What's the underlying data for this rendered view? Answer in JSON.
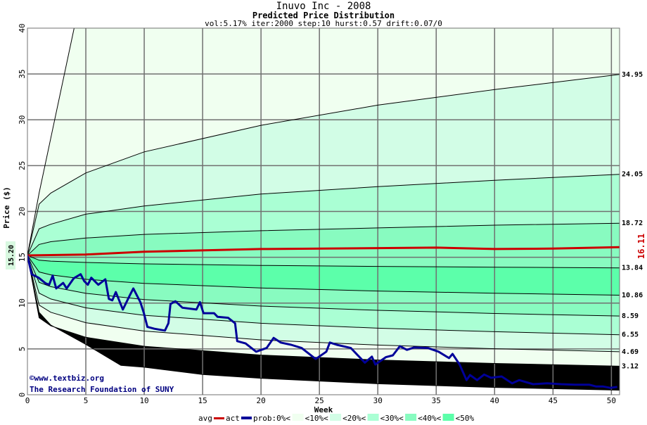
{
  "chart_data": {
    "type": "line",
    "title": "Inuvo Inc - 2008",
    "subtitle": "Predicted Price Distribution",
    "params": "vol:5.17% iter:2000 step:10 hurst:0.57 drift:0.07/0",
    "xlabel": "Week",
    "ylabel": "Price ($)",
    "xlim": [
      0,
      50.7
    ],
    "ylim": [
      0,
      40
    ],
    "xticks": [
      "0",
      "5",
      "10",
      "15",
      "20",
      "25",
      "30",
      "35",
      "40",
      "45",
      "50"
    ],
    "yticks": [
      "0",
      "5",
      "10",
      "15",
      "20",
      "25",
      "30",
      "35",
      "40"
    ],
    "grid": true,
    "start_label": "15.20",
    "avg_end_label": "16.11",
    "percentile_curves": [
      {
        "pct": 100,
        "label": "",
        "points": [
          [
            0,
            15.2
          ],
          [
            1,
            22
          ],
          [
            2,
            28
          ],
          [
            3,
            34
          ],
          [
            4,
            40
          ],
          [
            5,
            48
          ],
          [
            50.7,
            200
          ]
        ]
      },
      {
        "pct": 90,
        "label": "34.95",
        "points": [
          [
            0,
            15.2
          ],
          [
            1,
            20.8
          ],
          [
            2,
            22.0
          ],
          [
            5,
            24.2
          ],
          [
            10,
            26.5
          ],
          [
            20,
            29.4
          ],
          [
            30,
            31.6
          ],
          [
            40,
            33.3
          ],
          [
            50.7,
            34.95
          ]
        ]
      },
      {
        "pct": 80,
        "label": "24.05",
        "points": [
          [
            0,
            15.2
          ],
          [
            1,
            18.1
          ],
          [
            2,
            18.6
          ],
          [
            5,
            19.7
          ],
          [
            10,
            20.6
          ],
          [
            20,
            21.9
          ],
          [
            30,
            22.7
          ],
          [
            40,
            23.4
          ],
          [
            50.7,
            24.05
          ]
        ]
      },
      {
        "pct": 70,
        "label": "18.72",
        "points": [
          [
            0,
            15.2
          ],
          [
            1,
            16.4
          ],
          [
            2,
            16.7
          ],
          [
            5,
            17.1
          ],
          [
            10,
            17.5
          ],
          [
            20,
            17.9
          ],
          [
            30,
            18.2
          ],
          [
            40,
            18.5
          ],
          [
            50.7,
            18.72
          ]
        ]
      },
      {
        "pct": 60,
        "label": "13.84",
        "points": [
          [
            0,
            15.2
          ],
          [
            1,
            14.68
          ],
          [
            2,
            14.58
          ],
          [
            5,
            14.43
          ],
          [
            10,
            14.28
          ],
          [
            20,
            14.11
          ],
          [
            30,
            14.0
          ],
          [
            40,
            13.92
          ],
          [
            50.7,
            13.84
          ]
        ]
      },
      {
        "pct": 50,
        "label": "10.86",
        "points": [
          [
            0,
            15.2
          ],
          [
            1,
            13.4
          ],
          [
            2,
            13.08
          ],
          [
            5,
            12.6
          ],
          [
            10,
            12.15
          ],
          [
            20,
            11.65
          ],
          [
            30,
            11.32
          ],
          [
            40,
            11.08
          ],
          [
            50.7,
            10.86
          ]
        ]
      },
      {
        "pct": 40,
        "label": "8.59",
        "points": [
          [
            0,
            15.2
          ],
          [
            1,
            12.27
          ],
          [
            2,
            11.79
          ],
          [
            5,
            11.06
          ],
          [
            10,
            10.39
          ],
          [
            20,
            9.67
          ],
          [
            30,
            9.21
          ],
          [
            40,
            8.87
          ],
          [
            50.7,
            8.59
          ]
        ]
      },
      {
        "pct": 30,
        "label": "6.55",
        "points": [
          [
            0,
            15.2
          ],
          [
            1,
            11.09
          ],
          [
            2,
            10.45
          ],
          [
            5,
            9.48
          ],
          [
            10,
            8.67
          ],
          [
            20,
            7.8
          ],
          [
            30,
            7.26
          ],
          [
            40,
            6.88
          ],
          [
            50.7,
            6.55
          ]
        ]
      },
      {
        "pct": 20,
        "label": "4.69",
        "points": [
          [
            0,
            15.2
          ],
          [
            1,
            9.78
          ],
          [
            2,
            9.0
          ],
          [
            5,
            7.86
          ],
          [
            10,
            6.95
          ],
          [
            20,
            5.99
          ],
          [
            30,
            5.42
          ],
          [
            40,
            5.02
          ],
          [
            50.7,
            4.69
          ]
        ]
      },
      {
        "pct": 10,
        "label": "3.12",
        "points": [
          [
            0,
            15.2
          ],
          [
            1,
            8.4
          ],
          [
            2,
            7.52
          ],
          [
            5,
            6.27
          ],
          [
            10,
            5.29
          ],
          [
            20,
            4.33
          ],
          [
            30,
            3.79
          ],
          [
            40,
            3.42
          ],
          [
            50.7,
            3.12
          ]
        ]
      },
      {
        "pct": 0,
        "label": "",
        "points": [
          [
            0,
            15.2
          ],
          [
            1,
            9.0
          ],
          [
            2,
            7.6
          ],
          [
            5,
            5.5
          ],
          [
            8,
            3.2
          ],
          [
            10,
            3.0
          ],
          [
            15,
            2.2
          ],
          [
            20,
            1.8
          ],
          [
            30,
            1.2
          ],
          [
            40,
            0.8
          ],
          [
            50.7,
            0.5
          ]
        ]
      }
    ],
    "band_colors": [
      "#f0fff0",
      "#d2fde6",
      "#aaffd4",
      "#88fbc0",
      "#5cffaa",
      "#88fbc0",
      "#aaffd4",
      "#d2fde6",
      "#f0fff0"
    ],
    "series": [
      {
        "name": "avg",
        "color": "#cc0000",
        "points": [
          [
            0,
            15.2
          ],
          [
            5,
            15.3
          ],
          [
            10,
            15.6
          ],
          [
            20,
            15.9
          ],
          [
            30,
            16.0
          ],
          [
            35,
            16.05
          ],
          [
            40,
            15.9
          ],
          [
            45,
            15.95
          ],
          [
            50.7,
            16.11
          ]
        ]
      },
      {
        "name": "act",
        "color": "#000099",
        "points": [
          [
            0,
            15.2
          ],
          [
            0.36,
            13.15
          ],
          [
            0.96,
            12.77
          ],
          [
            1.56,
            12.15
          ],
          [
            1.86,
            12.0
          ],
          [
            2.16,
            13.0
          ],
          [
            2.46,
            11.6
          ],
          [
            3.06,
            12.2
          ],
          [
            3.36,
            11.6
          ],
          [
            3.96,
            12.7
          ],
          [
            4.56,
            13.15
          ],
          [
            4.86,
            12.4
          ],
          [
            5.17,
            12.0
          ],
          [
            5.47,
            12.77
          ],
          [
            6.07,
            12.0
          ],
          [
            6.67,
            12.6
          ],
          [
            6.97,
            10.46
          ],
          [
            7.27,
            10.3
          ],
          [
            7.57,
            11.2
          ],
          [
            8.17,
            9.3
          ],
          [
            8.77,
            10.85
          ],
          [
            9.07,
            11.6
          ],
          [
            9.67,
            10.1
          ],
          [
            9.97,
            8.9
          ],
          [
            10.27,
            7.4
          ],
          [
            10.87,
            7.2
          ],
          [
            11.77,
            7.0
          ],
          [
            12.07,
            7.8
          ],
          [
            12.25,
            9.9
          ],
          [
            12.67,
            10.2
          ],
          [
            13.27,
            9.5
          ],
          [
            14.47,
            9.3
          ],
          [
            14.77,
            10.1
          ],
          [
            15.08,
            8.9
          ],
          [
            15.98,
            8.9
          ],
          [
            16.28,
            8.5
          ],
          [
            17.18,
            8.4
          ],
          [
            17.78,
            7.8
          ],
          [
            17.96,
            5.85
          ],
          [
            18.68,
            5.6
          ],
          [
            19.58,
            4.7
          ],
          [
            20.48,
            5.1
          ],
          [
            21.08,
            6.2
          ],
          [
            21.68,
            5.7
          ],
          [
            22.58,
            5.45
          ],
          [
            23.48,
            5.1
          ],
          [
            24.68,
            3.9
          ],
          [
            25.59,
            4.7
          ],
          [
            25.89,
            5.7
          ],
          [
            26.49,
            5.45
          ],
          [
            27.69,
            5.1
          ],
          [
            28.89,
            3.5
          ],
          [
            29.49,
            4.15
          ],
          [
            29.79,
            3.3
          ],
          [
            30.69,
            4.1
          ],
          [
            31.29,
            4.3
          ],
          [
            31.89,
            5.3
          ],
          [
            32.49,
            4.9
          ],
          [
            33.09,
            5.15
          ],
          [
            34.29,
            5.1
          ],
          [
            35.2,
            4.7
          ],
          [
            36.1,
            4.0
          ],
          [
            36.4,
            4.45
          ],
          [
            37.0,
            3.3
          ],
          [
            37.6,
            1.6
          ],
          [
            37.9,
            2.15
          ],
          [
            38.5,
            1.6
          ],
          [
            39.1,
            2.2
          ],
          [
            39.7,
            1.85
          ],
          [
            40.6,
            2.0
          ],
          [
            41.5,
            1.25
          ],
          [
            42.1,
            1.6
          ],
          [
            43.3,
            1.15
          ],
          [
            44.5,
            1.25
          ],
          [
            45.7,
            1.15
          ],
          [
            46.9,
            1.1
          ],
          [
            48.1,
            1.1
          ],
          [
            48.7,
            0.9
          ],
          [
            49.3,
            0.9
          ],
          [
            49.9,
            0.75
          ],
          [
            50.5,
            0.85
          ]
        ]
      }
    ],
    "legend": {
      "avg": "avg",
      "act": "act",
      "prob_items": [
        "prob:0%<",
        "<10%<",
        "<20%<",
        "<30%<",
        "<40%<",
        "<50%"
      ],
      "prob_colors": [
        "#f0fff0",
        "#d2fde6",
        "#aaffd4",
        "#88fbc0",
        "#5cffaa"
      ]
    },
    "copyright": [
      "©www.textbiz.org",
      "The Research Foundation of SUNY"
    ]
  }
}
